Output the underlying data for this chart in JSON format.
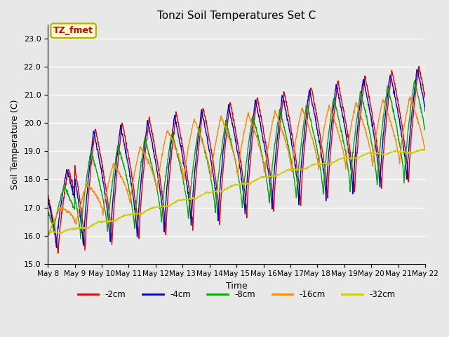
{
  "title": "Tonzi Soil Temperatures Set C",
  "xlabel": "Time",
  "ylabel": "Soil Temperature (C)",
  "ylim": [
    15.0,
    23.5
  ],
  "yticks": [
    15.0,
    16.0,
    17.0,
    18.0,
    19.0,
    20.0,
    21.0,
    22.0,
    23.0
  ],
  "legend_label_box": "TZ_fmet",
  "legend_box_facecolor": "#ffffcc",
  "legend_box_edgecolor": "#bbaa00",
  "legend_box_textcolor": "#cc0000",
  "series_colors": [
    "#dd0000",
    "#0000cc",
    "#00aa00",
    "#ff8800",
    "#cccc00"
  ],
  "series_labels": [
    "-2cm",
    "-4cm",
    "-8cm",
    "-16cm",
    "-32cm"
  ],
  "bg_color": "#e8e8e8",
  "xtick_labels": [
    "May 8",
    "May 9",
    "May 10",
    "May 11",
    "May 12",
    "May 13",
    "May 14",
    "May 15",
    "May 16",
    "May 17",
    "May 18",
    "May 19",
    "May 20",
    "May 21",
    "May 22"
  ],
  "num_days": 14,
  "points_per_day": 96
}
